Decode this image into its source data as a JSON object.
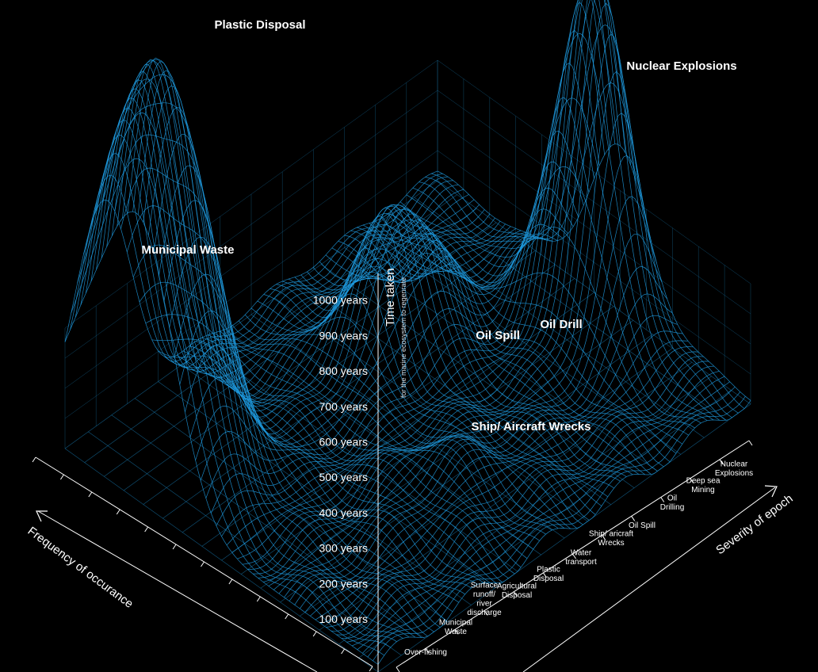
{
  "chart_data": {
    "type": "surface",
    "title": "",
    "zlabel": "Time taken",
    "zlabel_sub": "for the marine ecosystem to regenrate",
    "xlabel": "Severity of epoch",
    "ylabel": "Frequency of occurance",
    "z_ticks": [
      "100 years",
      "200 years",
      "300 years",
      "400 years",
      "500 years",
      "600 years",
      "700 years",
      "800 years",
      "900 years",
      "1000 years"
    ],
    "z_range": [
      0,
      1000
    ],
    "categories": [
      [
        "Over-fishing"
      ],
      [
        "Municipal",
        "Waste"
      ],
      [
        "Surface",
        "runoff/",
        "river",
        "discharge"
      ],
      [
        "Agricultural",
        "Disposal"
      ],
      [
        "Plastic",
        "Disposal"
      ],
      [
        "Water",
        "transport"
      ],
      [
        "Ship/ aricraft",
        "Wrecks"
      ],
      [
        "Oil Spill"
      ],
      [
        "Oil",
        "Drilling"
      ],
      [
        "Deep sea",
        "Mining"
      ],
      [
        "Nuclear",
        "Explosions"
      ]
    ],
    "peaks": [
      {
        "name": "Plastic Disposal",
        "value": 1000
      },
      {
        "name": "Municipal Waste",
        "value": 560
      },
      {
        "name": "Nuclear Explosions",
        "value": 920
      },
      {
        "name": "Oil Drill",
        "value": 230
      },
      {
        "name": "Oil Spill",
        "value": 210
      },
      {
        "name": "Ship/ Aircraft Wrecks",
        "value": 80
      }
    ],
    "color": "#1e9be0",
    "grid": true
  }
}
